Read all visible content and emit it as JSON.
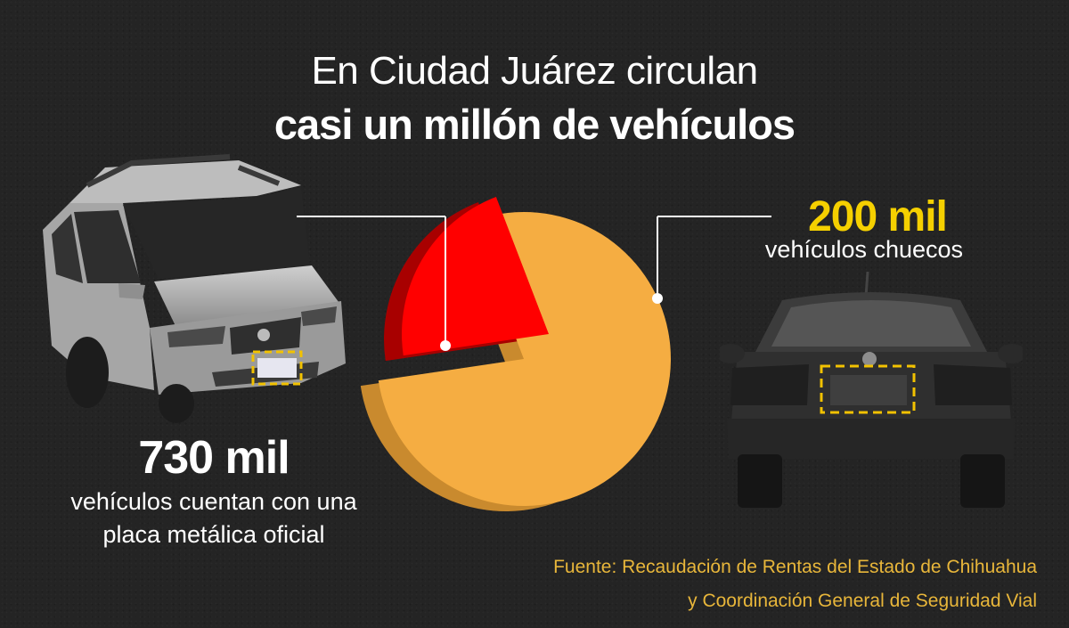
{
  "header": {
    "line1": "En Ciudad Juárez circulan",
    "line2": "casi un millón de vehículos"
  },
  "left_label": {
    "value": "730 mil",
    "desc_line1": "vehículos cuentan con una",
    "desc_line2": "placa metálica oficial"
  },
  "right_label": {
    "value": "200 mil",
    "desc": "vehículos chuecos"
  },
  "source": {
    "line1": "Fuente: Recaudación de Rentas del Estado de Chihuahua",
    "line2": "y Coordinación General de Seguridad Vial"
  },
  "chart_data": {
    "type": "pie",
    "title": "En Ciudad Juárez circulan casi un millón de vehículos",
    "slices": [
      {
        "label": "vehículos cuentan con una placa metálica oficial",
        "value": 730,
        "display": "730 mil",
        "color": "#f5ad42",
        "side_color": "#c98a2e"
      },
      {
        "label": "vehículos chuecos",
        "value": 200,
        "display": "200 mil",
        "color": "#ff0000",
        "side_color": "#a80000"
      }
    ],
    "exploded_slice": "vehículos chuecos",
    "legend": "none"
  },
  "colors": {
    "background": "#242424",
    "accent_yellow": "#f5d000",
    "source_text": "#e8b63a",
    "plate_outline": "#f2c200"
  }
}
